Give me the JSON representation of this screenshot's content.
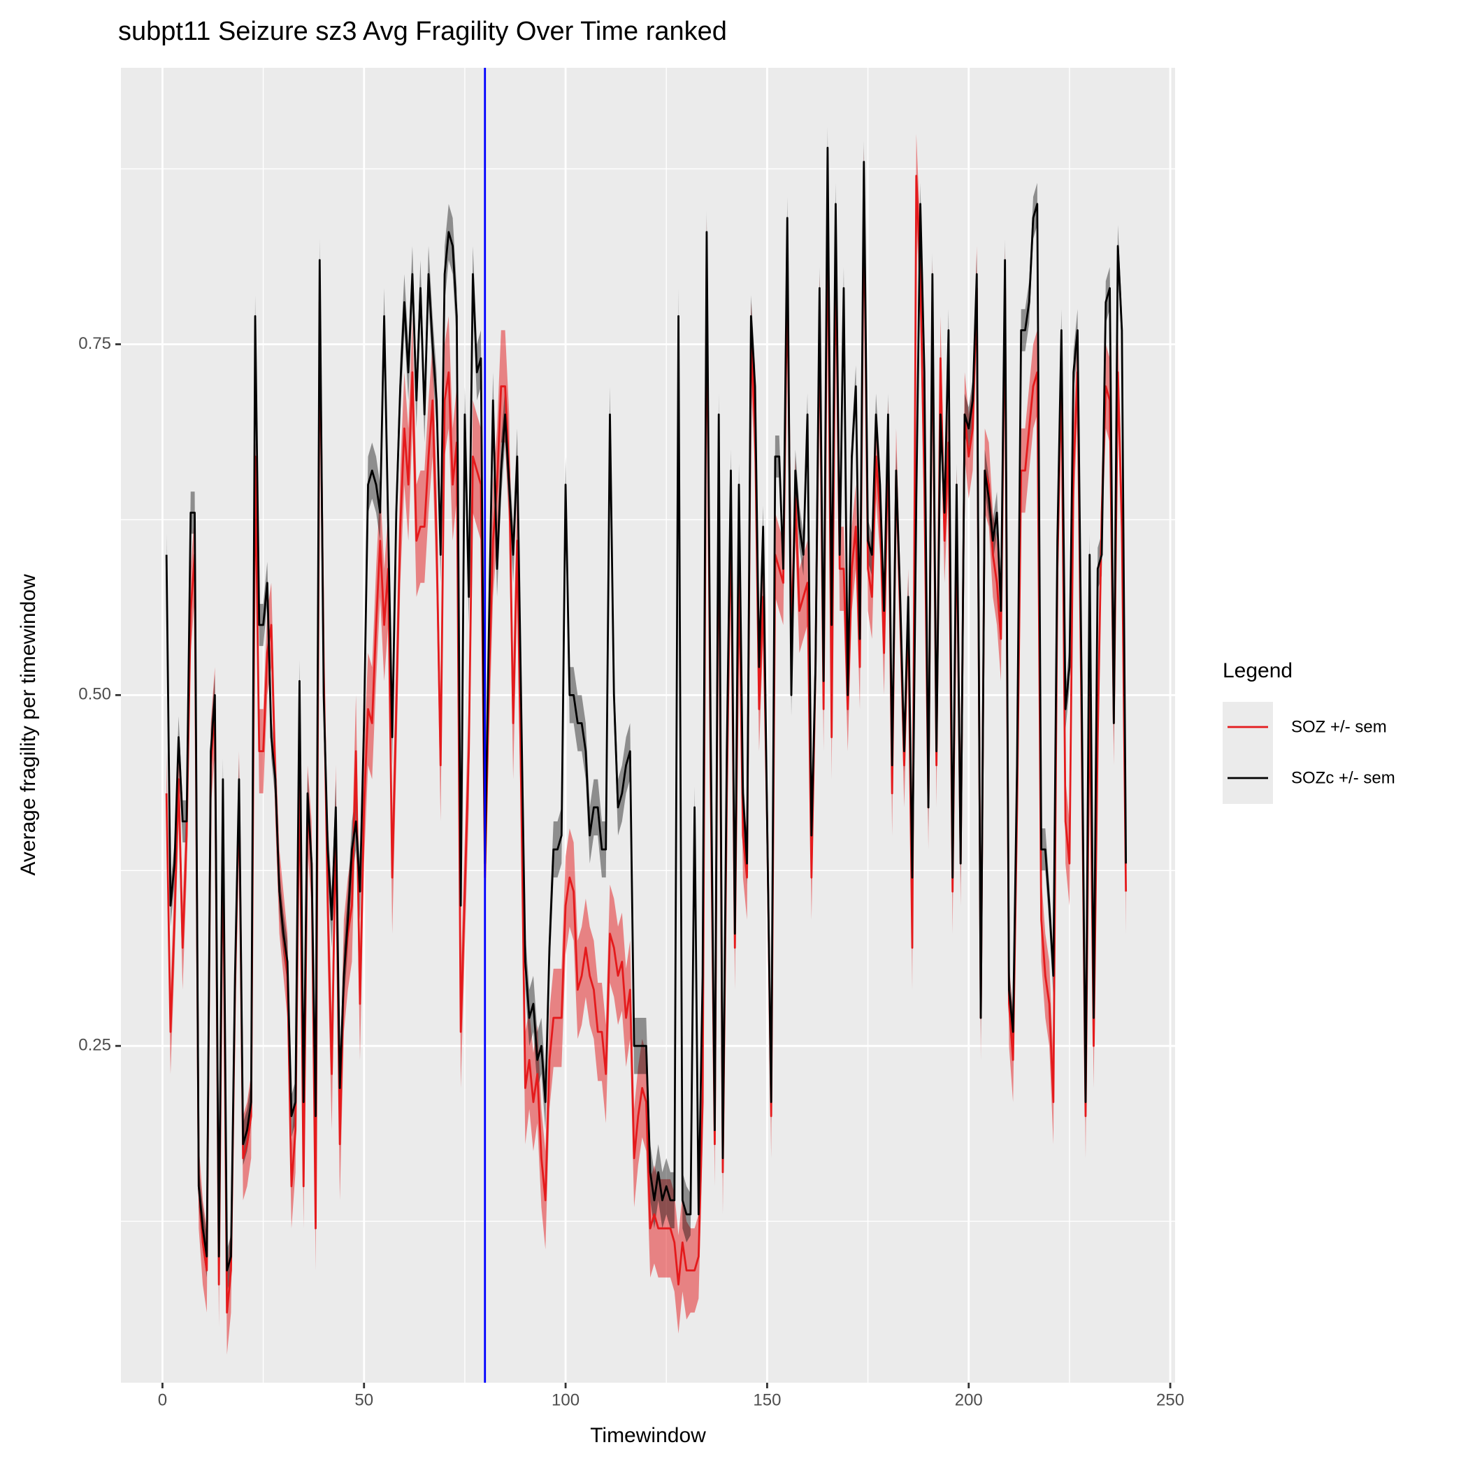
{
  "chart_data": {
    "type": "line",
    "title": "subpt11 Seizure sz3 Avg Fragility Over Time ranked",
    "x_label": "Timewindow",
    "y_label": "Average fragility per timewindow",
    "legend_title": "Legend",
    "legend_position": "right",
    "grid": true,
    "background": "#ebebeb",
    "xlim": [
      -10.3,
      251.2
    ],
    "ylim": [
      0.01,
      0.947
    ],
    "xticks": [
      0,
      50,
      100,
      150,
      200,
      250
    ],
    "yticks": [
      0.25,
      {
        "value": 0.5,
        "label": "0.50"
      },
      0.75
    ],
    "xminor": [
      25,
      75,
      125,
      175,
      225
    ],
    "yminor": [
      0.125,
      0.375,
      0.625,
      0.875
    ],
    "vline": {
      "x": 80,
      "color": "#0000ff"
    },
    "x": [
      1,
      2,
      3,
      4,
      5,
      6,
      7,
      8,
      9,
      10,
      11,
      12,
      13,
      14,
      15,
      16,
      17,
      18,
      19,
      20,
      21,
      22,
      23,
      24,
      25,
      26,
      27,
      28,
      29,
      30,
      31,
      32,
      33,
      34,
      35,
      36,
      37,
      38,
      39,
      40,
      41,
      42,
      43,
      44,
      45,
      46,
      47,
      48,
      49,
      50,
      51,
      52,
      53,
      54,
      55,
      56,
      57,
      58,
      59,
      60,
      61,
      62,
      63,
      64,
      65,
      66,
      67,
      68,
      69,
      70,
      71,
      72,
      73,
      74,
      75,
      76,
      77,
      78,
      79,
      80,
      81,
      82,
      83,
      84,
      85,
      86,
      87,
      88,
      89,
      90,
      91,
      92,
      93,
      94,
      95,
      96,
      97,
      98,
      99,
      100,
      101,
      102,
      103,
      104,
      105,
      106,
      107,
      108,
      109,
      110,
      111,
      112,
      113,
      114,
      115,
      116,
      117,
      118,
      119,
      120,
      121,
      122,
      123,
      124,
      125,
      126,
      127,
      128,
      129,
      130,
      131,
      132,
      133,
      134,
      135,
      136,
      137,
      138,
      139,
      140,
      141,
      142,
      143,
      144,
      145,
      146,
      147,
      148,
      149,
      150,
      151,
      152,
      153,
      154,
      155,
      156,
      157,
      158,
      159,
      160,
      161,
      162,
      163,
      164,
      165,
      166,
      167,
      168,
      169,
      170,
      171,
      172,
      173,
      174,
      175,
      176,
      177,
      178,
      179,
      180,
      181,
      182,
      183,
      184,
      185,
      186,
      187,
      188,
      189,
      190,
      191,
      192,
      193,
      194,
      195,
      196,
      197,
      198,
      199,
      200,
      201,
      202,
      203,
      204,
      205,
      206,
      207,
      208,
      209,
      210,
      211,
      212,
      213,
      214,
      215,
      216,
      217,
      218,
      219,
      220,
      221,
      222,
      223,
      224,
      225,
      226,
      227,
      228,
      229,
      230,
      231,
      232,
      233,
      234,
      235,
      236,
      237,
      238,
      239
    ],
    "series": [
      {
        "name": "SOZ +/- sem",
        "color": "#e41a1c",
        "values": [
          0.43,
          0.26,
          0.34,
          0.44,
          0.32,
          0.4,
          0.56,
          0.6,
          0.15,
          0.11,
          0.09,
          0.45,
          0.49,
          0.08,
          0.41,
          0.06,
          0.09,
          0.29,
          0.43,
          0.17,
          0.18,
          0.2,
          0.67,
          0.46,
          0.46,
          0.53,
          0.55,
          0.44,
          0.36,
          0.33,
          0.3,
          0.15,
          0.19,
          0.45,
          0.15,
          0.42,
          0.38,
          0.12,
          0.78,
          0.52,
          0.35,
          0.23,
          0.41,
          0.18,
          0.3,
          0.33,
          0.35,
          0.46,
          0.28,
          0.42,
          0.49,
          0.48,
          0.55,
          0.61,
          0.55,
          0.59,
          0.37,
          0.49,
          0.62,
          0.69,
          0.65,
          0.73,
          0.61,
          0.62,
          0.62,
          0.67,
          0.71,
          0.61,
          0.45,
          0.71,
          0.73,
          0.65,
          0.68,
          0.26,
          0.36,
          0.46,
          0.67,
          0.66,
          0.65,
          0.37,
          0.51,
          0.61,
          0.65,
          0.72,
          0.72,
          0.66,
          0.48,
          0.61,
          0.43,
          0.22,
          0.24,
          0.21,
          0.23,
          0.17,
          0.14,
          0.24,
          0.27,
          0.27,
          0.27,
          0.35,
          0.37,
          0.36,
          0.29,
          0.3,
          0.32,
          0.3,
          0.29,
          0.26,
          0.26,
          0.23,
          0.33,
          0.32,
          0.3,
          0.31,
          0.27,
          0.29,
          0.17,
          0.2,
          0.22,
          0.21,
          0.12,
          0.13,
          0.12,
          0.12,
          0.12,
          0.12,
          0.11,
          0.08,
          0.11,
          0.09,
          0.09,
          0.09,
          0.1,
          0.21,
          0.81,
          0.44,
          0.18,
          0.67,
          0.16,
          0.43,
          0.63,
          0.32,
          0.59,
          0.4,
          0.37,
          0.75,
          0.69,
          0.49,
          0.57,
          0.41,
          0.2,
          0.6,
          0.59,
          0.58,
          0.8,
          0.54,
          0.64,
          0.56,
          0.57,
          0.58,
          0.37,
          0.52,
          0.77,
          0.49,
          0.86,
          0.47,
          0.82,
          0.59,
          0.59,
          0.49,
          0.59,
          0.62,
          0.52,
          0.86,
          0.59,
          0.57,
          0.67,
          0.63,
          0.53,
          0.68,
          0.43,
          0.66,
          0.56,
          0.45,
          0.56,
          0.32,
          0.87,
          0.8,
          0.65,
          0.42,
          0.78,
          0.45,
          0.74,
          0.61,
          0.68,
          0.36,
          0.63,
          0.38,
          0.7,
          0.67,
          0.69,
          0.79,
          0.27,
          0.66,
          0.65,
          0.6,
          0.58,
          0.54,
          0.79,
          0.28,
          0.24,
          0.42,
          0.66,
          0.66,
          0.69,
          0.72,
          0.73,
          0.34,
          0.3,
          0.28,
          0.21,
          0.59,
          0.73,
          0.41,
          0.38,
          0.66,
          0.73,
          0.48,
          0.2,
          0.51,
          0.25,
          0.47,
          0.63,
          0.72,
          0.71,
          0.48,
          0.73,
          0.62,
          0.36
        ],
        "sem": [
          0.03,
          0.03,
          0.03,
          0.03,
          0.03,
          0.03,
          0.03,
          0.03,
          0.03,
          0.03,
          0.03,
          0.03,
          0.03,
          0.03,
          0.03,
          0.03,
          0.03,
          0.03,
          0.03,
          0.03,
          0.03,
          0.03,
          0.03,
          0.03,
          0.03,
          0.03,
          0.03,
          0.03,
          0.03,
          0.03,
          0.03,
          0.03,
          0.03,
          0.03,
          0.03,
          0.03,
          0.03,
          0.03,
          0.03,
          0.03,
          0.04,
          0.04,
          0.04,
          0.04,
          0.04,
          0.04,
          0.04,
          0.04,
          0.04,
          0.04,
          0.04,
          0.04,
          0.04,
          0.04,
          0.04,
          0.04,
          0.04,
          0.04,
          0.04,
          0.04,
          0.04,
          0.04,
          0.04,
          0.04,
          0.04,
          0.04,
          0.04,
          0.04,
          0.04,
          0.04,
          0.04,
          0.04,
          0.04,
          0.04,
          0.04,
          0.04,
          0.04,
          0.04,
          0.04,
          0.04,
          0.04,
          0.04,
          0.04,
          0.04,
          0.04,
          0.04,
          0.04,
          0.04,
          0.04,
          0.04,
          0.035,
          0.035,
          0.035,
          0.035,
          0.035,
          0.035,
          0.035,
          0.035,
          0.035,
          0.035,
          0.035,
          0.035,
          0.035,
          0.035,
          0.035,
          0.035,
          0.035,
          0.035,
          0.035,
          0.035,
          0.035,
          0.035,
          0.035,
          0.035,
          0.035,
          0.035,
          0.035,
          0.035,
          0.035,
          0.035,
          0.035,
          0.035,
          0.035,
          0.035,
          0.035,
          0.035,
          0.035,
          0.035,
          0.035,
          0.035,
          0.03,
          0.03,
          0.03,
          0.03,
          0.03,
          0.03,
          0.03,
          0.03,
          0.03,
          0.03,
          0.03,
          0.03,
          0.03,
          0.03,
          0.03,
          0.03,
          0.03,
          0.03,
          0.03,
          0.03,
          0.03,
          0.03,
          0.03,
          0.03,
          0.03,
          0.03,
          0.03,
          0.03,
          0.03,
          0.03,
          0.03,
          0.03,
          0.03,
          0.03,
          0.03,
          0.03,
          0.03,
          0.03,
          0.03,
          0.03,
          0.03,
          0.03,
          0.03,
          0.03,
          0.03,
          0.03,
          0.03,
          0.03,
          0.03,
          0.03,
          0.03,
          0.03,
          0.03,
          0.03,
          0.03,
          0.03,
          0.03,
          0.03,
          0.03,
          0.03,
          0.03,
          0.03,
          0.03,
          0.03,
          0.03,
          0.03,
          0.03,
          0.03,
          0.03,
          0.03,
          0.03,
          0.03,
          0.03,
          0.03,
          0.03,
          0.03,
          0.03,
          0.03,
          0.03,
          0.03,
          0.03,
          0.03,
          0.03,
          0.03,
          0.03,
          0.03,
          0.03,
          0.03,
          0.03,
          0.03,
          0.03,
          0.03,
          0.03,
          0.03,
          0.03,
          0.03,
          0.03,
          0.03,
          0.03,
          0.03,
          0.03,
          0.03,
          0.03,
          0.03,
          0.03,
          0.03,
          0.03,
          0.03,
          0.03
        ]
      },
      {
        "name": "SOZc +/- sem",
        "color": "#000000",
        "values": [
          0.6,
          0.35,
          0.38,
          0.47,
          0.41,
          0.41,
          0.63,
          0.63,
          0.15,
          0.12,
          0.1,
          0.46,
          0.5,
          0.1,
          0.44,
          0.09,
          0.1,
          0.3,
          0.44,
          0.18,
          0.19,
          0.21,
          0.77,
          0.55,
          0.55,
          0.58,
          0.47,
          0.44,
          0.36,
          0.33,
          0.31,
          0.2,
          0.21,
          0.51,
          0.21,
          0.43,
          0.38,
          0.2,
          0.81,
          0.5,
          0.39,
          0.34,
          0.42,
          0.22,
          0.3,
          0.34,
          0.39,
          0.41,
          0.36,
          0.48,
          0.65,
          0.66,
          0.65,
          0.63,
          0.77,
          0.62,
          0.47,
          0.63,
          0.72,
          0.78,
          0.73,
          0.8,
          0.71,
          0.79,
          0.7,
          0.8,
          0.75,
          0.71,
          0.6,
          0.8,
          0.83,
          0.82,
          0.77,
          0.35,
          0.7,
          0.57,
          0.8,
          0.73,
          0.74,
          0.38,
          0.55,
          0.71,
          0.59,
          0.66,
          0.7,
          0.65,
          0.6,
          0.67,
          0.49,
          0.31,
          0.27,
          0.28,
          0.24,
          0.25,
          0.21,
          0.32,
          0.39,
          0.39,
          0.4,
          0.65,
          0.5,
          0.5,
          0.48,
          0.48,
          0.46,
          0.4,
          0.42,
          0.42,
          0.39,
          0.39,
          0.7,
          0.5,
          0.42,
          0.43,
          0.45,
          0.46,
          0.25,
          0.25,
          0.25,
          0.25,
          0.16,
          0.14,
          0.16,
          0.14,
          0.15,
          0.14,
          0.14,
          0.77,
          0.14,
          0.13,
          0.13,
          0.42,
          0.13,
          0.3,
          0.83,
          0.47,
          0.19,
          0.7,
          0.17,
          0.46,
          0.66,
          0.33,
          0.65,
          0.43,
          0.38,
          0.77,
          0.72,
          0.52,
          0.62,
          0.41,
          0.21,
          0.67,
          0.67,
          0.59,
          0.84,
          0.5,
          0.66,
          0.62,
          0.6,
          0.7,
          0.4,
          0.52,
          0.79,
          0.51,
          0.89,
          0.55,
          0.85,
          0.6,
          0.79,
          0.5,
          0.67,
          0.72,
          0.54,
          0.88,
          0.61,
          0.6,
          0.7,
          0.65,
          0.56,
          0.7,
          0.45,
          0.66,
          0.57,
          0.46,
          0.57,
          0.37,
          0.64,
          0.85,
          0.73,
          0.42,
          0.8,
          0.46,
          0.7,
          0.63,
          0.76,
          0.37,
          0.65,
          0.38,
          0.7,
          0.69,
          0.71,
          0.8,
          0.27,
          0.66,
          0.64,
          0.61,
          0.63,
          0.56,
          0.81,
          0.29,
          0.26,
          0.45,
          0.76,
          0.76,
          0.78,
          0.84,
          0.85,
          0.39,
          0.39,
          0.35,
          0.3,
          0.61,
          0.76,
          0.49,
          0.52,
          0.73,
          0.76,
          0.51,
          0.21,
          0.6,
          0.27,
          0.59,
          0.6,
          0.78,
          0.79,
          0.48,
          0.82,
          0.76,
          0.38
        ],
        "sem": [
          0.015,
          0.015,
          0.015,
          0.015,
          0.015,
          0.015,
          0.015,
          0.015,
          0.015,
          0.015,
          0.015,
          0.015,
          0.015,
          0.015,
          0.015,
          0.015,
          0.015,
          0.015,
          0.015,
          0.015,
          0.015,
          0.015,
          0.015,
          0.015,
          0.015,
          0.015,
          0.015,
          0.015,
          0.015,
          0.015,
          0.015,
          0.015,
          0.015,
          0.015,
          0.015,
          0.015,
          0.015,
          0.015,
          0.015,
          0.015,
          0.02,
          0.02,
          0.02,
          0.02,
          0.02,
          0.02,
          0.02,
          0.02,
          0.02,
          0.02,
          0.02,
          0.02,
          0.02,
          0.02,
          0.02,
          0.02,
          0.02,
          0.02,
          0.02,
          0.02,
          0.02,
          0.02,
          0.02,
          0.02,
          0.02,
          0.02,
          0.02,
          0.02,
          0.02,
          0.02,
          0.02,
          0.02,
          0.02,
          0.02,
          0.02,
          0.02,
          0.02,
          0.02,
          0.02,
          0.02,
          0.02,
          0.02,
          0.02,
          0.02,
          0.02,
          0.02,
          0.02,
          0.02,
          0.02,
          0.02,
          0.02,
          0.02,
          0.02,
          0.02,
          0.02,
          0.02,
          0.02,
          0.02,
          0.02,
          0.02,
          0.02,
          0.02,
          0.02,
          0.02,
          0.02,
          0.02,
          0.02,
          0.02,
          0.02,
          0.02,
          0.02,
          0.02,
          0.02,
          0.02,
          0.02,
          0.02,
          0.02,
          0.02,
          0.02,
          0.02,
          0.02,
          0.02,
          0.02,
          0.02,
          0.02,
          0.02,
          0.02,
          0.02,
          0.02,
          0.02,
          0.015,
          0.015,
          0.015,
          0.015,
          0.015,
          0.015,
          0.015,
          0.015,
          0.015,
          0.015,
          0.015,
          0.015,
          0.015,
          0.015,
          0.015,
          0.015,
          0.015,
          0.015,
          0.015,
          0.015,
          0.015,
          0.015,
          0.015,
          0.015,
          0.015,
          0.015,
          0.015,
          0.015,
          0.015,
          0.015,
          0.015,
          0.015,
          0.015,
          0.015,
          0.015,
          0.015,
          0.015,
          0.015,
          0.015,
          0.015,
          0.015,
          0.015,
          0.015,
          0.015,
          0.015,
          0.015,
          0.015,
          0.015,
          0.015,
          0.015,
          0.015,
          0.015,
          0.015,
          0.015,
          0.015,
          0.015,
          0.015,
          0.015,
          0.015,
          0.015,
          0.015,
          0.015,
          0.015,
          0.015,
          0.015,
          0.015,
          0.015,
          0.015,
          0.015,
          0.015,
          0.015,
          0.015,
          0.015,
          0.015,
          0.015,
          0.015,
          0.015,
          0.015,
          0.015,
          0.015,
          0.015,
          0.015,
          0.015,
          0.015,
          0.015,
          0.015,
          0.015,
          0.015,
          0.015,
          0.015,
          0.015,
          0.015,
          0.015,
          0.015,
          0.015,
          0.015,
          0.015,
          0.015,
          0.015,
          0.015,
          0.015,
          0.015,
          0.015,
          0.015,
          0.015,
          0.015,
          0.015,
          0.015,
          0.015
        ]
      }
    ]
  }
}
